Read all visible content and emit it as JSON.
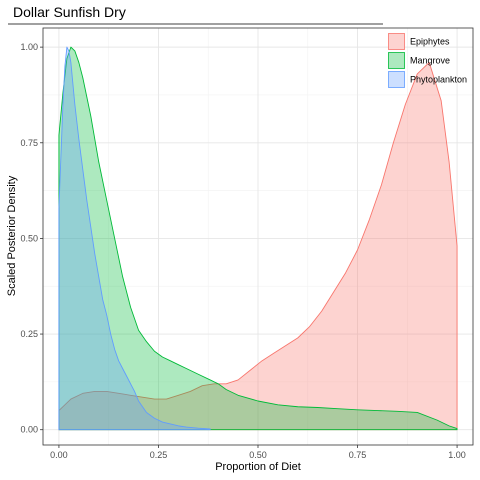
{
  "chart_data": {
    "type": "area",
    "title": "Dollar Sunfish Dry",
    "xlabel": "Proportion of Diet",
    "ylabel": "Scaled Posterior Density",
    "xlim": [
      -0.04,
      1.04
    ],
    "ylim": [
      -0.04,
      1.05
    ],
    "x_ticks": [
      0.0,
      0.25,
      0.5,
      0.75,
      1.0
    ],
    "x_tick_labels": [
      "0.00",
      "0.25",
      "0.50",
      "0.75",
      "1.00"
    ],
    "y_ticks": [
      0.0,
      0.25,
      0.5,
      0.75,
      1.0
    ],
    "y_tick_labels": [
      "0.00",
      "0.25",
      "0.50",
      "0.75",
      "1.00"
    ],
    "grid": true,
    "legend_position": "top-right",
    "series": [
      {
        "name": "Epiphytes",
        "fill": "#F8766D",
        "stroke": "#F8766D",
        "x": [
          0.0,
          0.03,
          0.06,
          0.09,
          0.12,
          0.15,
          0.18,
          0.21,
          0.24,
          0.27,
          0.3,
          0.33,
          0.36,
          0.39,
          0.42,
          0.45,
          0.48,
          0.51,
          0.54,
          0.57,
          0.6,
          0.63,
          0.66,
          0.69,
          0.72,
          0.75,
          0.78,
          0.81,
          0.84,
          0.87,
          0.9,
          0.93,
          0.96,
          0.98,
          1.0
        ],
        "y": [
          0.05,
          0.08,
          0.095,
          0.1,
          0.1,
          0.095,
          0.09,
          0.085,
          0.08,
          0.08,
          0.09,
          0.1,
          0.115,
          0.12,
          0.12,
          0.13,
          0.155,
          0.18,
          0.2,
          0.22,
          0.24,
          0.27,
          0.31,
          0.36,
          0.41,
          0.47,
          0.55,
          0.64,
          0.75,
          0.85,
          0.93,
          0.96,
          0.86,
          0.7,
          0.48
        ]
      },
      {
        "name": "Mangrove",
        "fill": "#00BA38",
        "stroke": "#00BA38",
        "x": [
          0.0,
          0.01,
          0.02,
          0.03,
          0.04,
          0.05,
          0.06,
          0.07,
          0.08,
          0.09,
          0.1,
          0.12,
          0.14,
          0.16,
          0.18,
          0.2,
          0.22,
          0.24,
          0.26,
          0.28,
          0.3,
          0.32,
          0.35,
          0.38,
          0.4,
          0.42,
          0.45,
          0.5,
          0.55,
          0.6,
          0.65,
          0.7,
          0.75,
          0.8,
          0.85,
          0.9,
          0.95,
          0.98,
          1.0
        ],
        "y": [
          0.77,
          0.88,
          0.97,
          1.0,
          0.99,
          0.96,
          0.92,
          0.87,
          0.82,
          0.76,
          0.7,
          0.6,
          0.5,
          0.4,
          0.32,
          0.26,
          0.23,
          0.205,
          0.19,
          0.18,
          0.17,
          0.16,
          0.145,
          0.13,
          0.12,
          0.105,
          0.09,
          0.075,
          0.065,
          0.06,
          0.058,
          0.055,
          0.052,
          0.05,
          0.048,
          0.045,
          0.025,
          0.01,
          0.003
        ]
      },
      {
        "name": "Phytoplankton",
        "fill": "#619CFF",
        "stroke": "#619CFF",
        "x": [
          0.0,
          0.01,
          0.015,
          0.02,
          0.025,
          0.03,
          0.04,
          0.05,
          0.06,
          0.07,
          0.08,
          0.09,
          0.1,
          0.11,
          0.12,
          0.13,
          0.14,
          0.15,
          0.16,
          0.17,
          0.18,
          0.19,
          0.2,
          0.22,
          0.24,
          0.26,
          0.28,
          0.3,
          0.32,
          0.35,
          0.38
        ],
        "y": [
          0.58,
          0.85,
          0.95,
          1.0,
          0.99,
          0.96,
          0.85,
          0.76,
          0.68,
          0.6,
          0.53,
          0.46,
          0.4,
          0.34,
          0.3,
          0.25,
          0.21,
          0.18,
          0.16,
          0.14,
          0.12,
          0.1,
          0.075,
          0.045,
          0.03,
          0.02,
          0.015,
          0.01,
          0.007,
          0.004,
          0.002
        ]
      }
    ]
  }
}
